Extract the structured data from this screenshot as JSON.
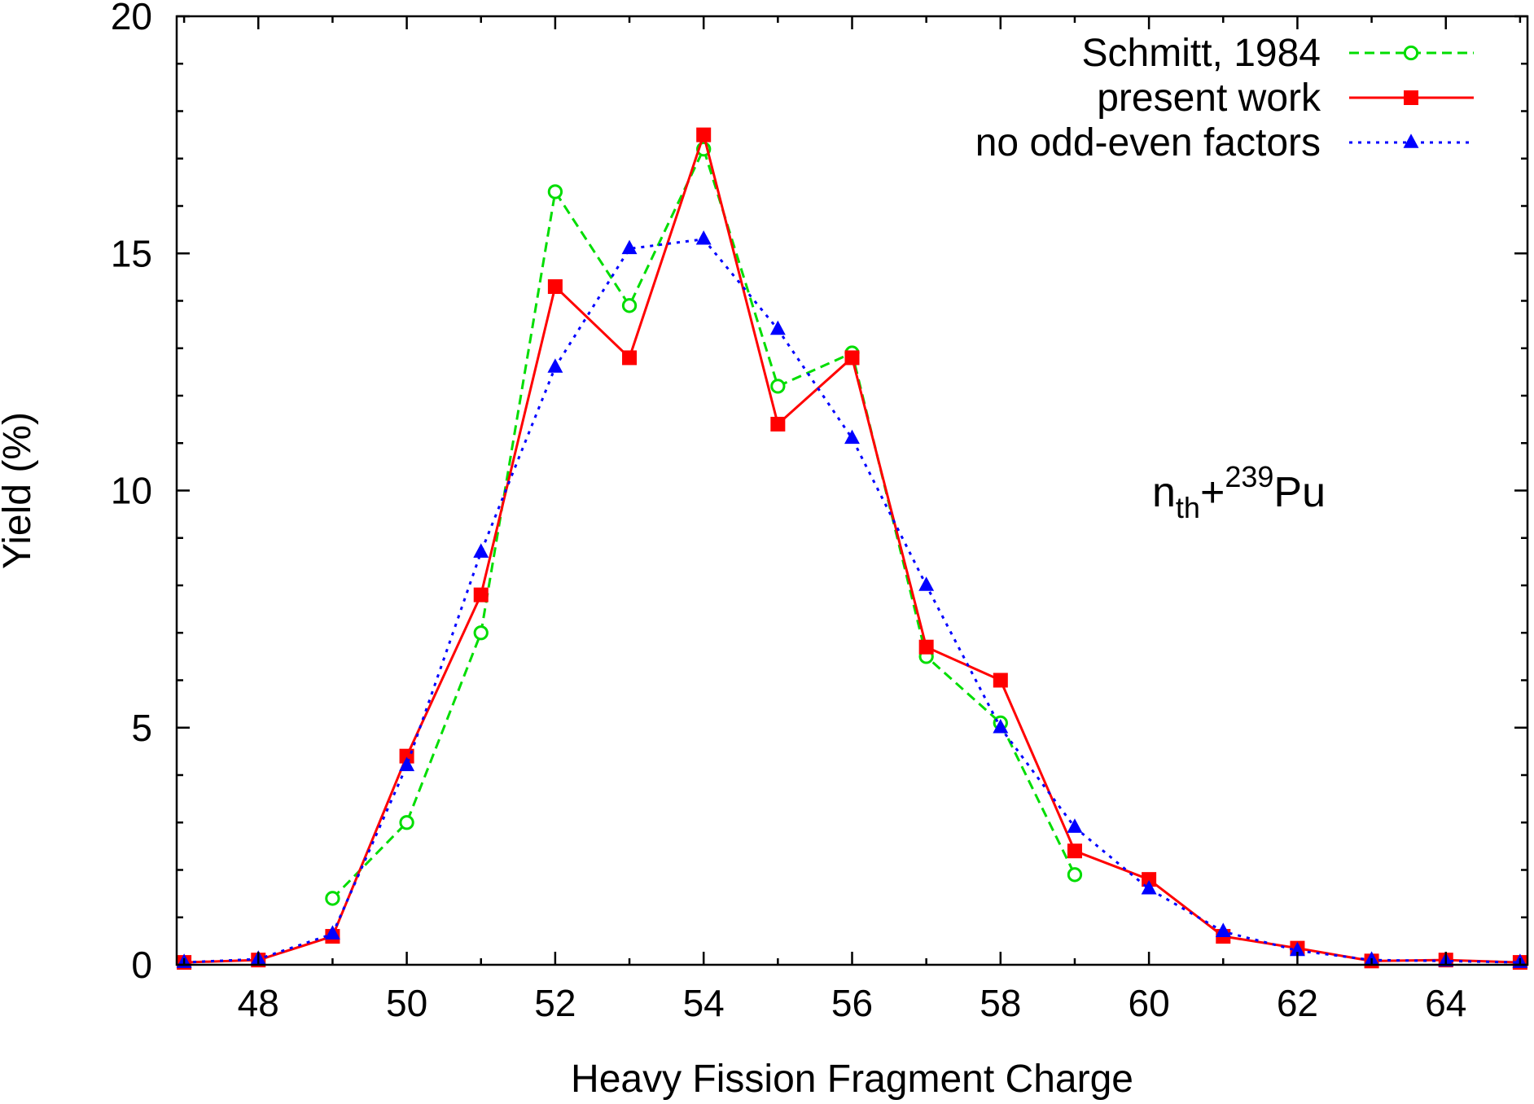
{
  "chart_data": {
    "type": "line",
    "xlabel": "Heavy Fission Fragment Charge",
    "ylabel": "Yield (%)",
    "xlim": [
      46.9,
      65.1
    ],
    "ylim": [
      0,
      20
    ],
    "xticks": [
      48,
      50,
      52,
      54,
      56,
      58,
      60,
      62,
      64
    ],
    "yticks": [
      0,
      5,
      10,
      15,
      20
    ],
    "grid": false,
    "legend_position": "top-right",
    "annotation": {
      "base": "n",
      "sub": "th",
      "plus": "+",
      "sup": "239",
      "element": "Pu"
    },
    "series": [
      {
        "name": "Schmitt, 1984",
        "color": "#00dd00",
        "line": "dashed",
        "marker": "open-circle",
        "x": [
          49,
          50,
          51,
          52,
          53,
          54,
          55,
          56,
          57,
          58,
          59
        ],
        "y": [
          1.4,
          3.0,
          7.0,
          16.3,
          13.9,
          17.2,
          12.2,
          12.9,
          6.5,
          5.1,
          1.9
        ]
      },
      {
        "name": "present work",
        "color": "#ff0000",
        "line": "solid",
        "marker": "filled-square",
        "x": [
          47,
          48,
          49,
          50,
          51,
          52,
          53,
          54,
          55,
          56,
          57,
          58,
          59,
          60,
          61,
          62,
          63,
          64,
          65
        ],
        "y": [
          0.05,
          0.1,
          0.6,
          4.4,
          7.8,
          14.3,
          12.8,
          17.5,
          11.4,
          12.8,
          6.7,
          6.0,
          2.4,
          1.8,
          0.6,
          0.35,
          0.08,
          0.1,
          0.05
        ]
      },
      {
        "name": "no odd-even factors",
        "color": "#0000ff",
        "line": "dotted",
        "marker": "filled-triangle",
        "x": [
          47,
          48,
          49,
          50,
          51,
          52,
          53,
          54,
          55,
          56,
          57,
          58,
          59,
          60,
          61,
          62,
          63,
          64,
          65
        ],
        "y": [
          0.05,
          0.12,
          0.65,
          4.2,
          8.7,
          12.6,
          15.1,
          15.3,
          13.4,
          11.1,
          8.0,
          5.0,
          2.9,
          1.6,
          0.7,
          0.3,
          0.1,
          0.08,
          0.05
        ]
      }
    ]
  }
}
